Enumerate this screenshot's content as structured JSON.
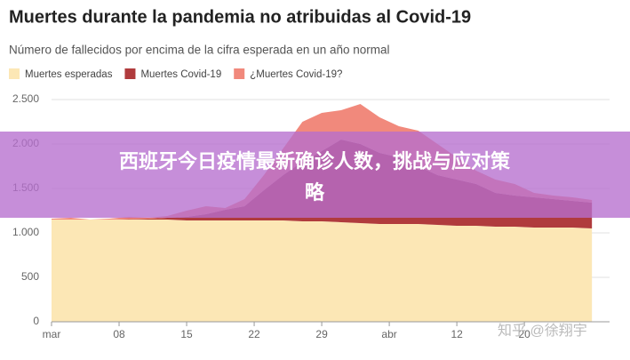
{
  "chart_data": {
    "type": "stacked-area",
    "title": "Muertes durante la pandemia no atribuidas al Covid-19",
    "subtitle": "Número de fallecidos por encima de la cifra esperada en un año normal",
    "x": [
      "03-01",
      "03-03",
      "03-05",
      "03-07",
      "03-09",
      "03-11",
      "03-13",
      "03-15",
      "03-17",
      "03-19",
      "03-21",
      "03-23",
      "03-25",
      "03-27",
      "03-29",
      "03-31",
      "04-02",
      "04-04",
      "04-06",
      "04-08",
      "04-10",
      "04-12",
      "04-14",
      "04-16",
      "04-18",
      "04-20",
      "04-22",
      "04-24",
      "04-26"
    ],
    "series": [
      {
        "name": "Muertes esperadas",
        "color": "#fce7b5",
        "values": [
          1150,
          1150,
          1150,
          1150,
          1150,
          1150,
          1150,
          1140,
          1140,
          1140,
          1140,
          1140,
          1140,
          1130,
          1130,
          1120,
          1110,
          1100,
          1100,
          1100,
          1090,
          1080,
          1080,
          1070,
          1070,
          1060,
          1060,
          1060,
          1050
        ]
      },
      {
        "name": "Muertes Covid-19",
        "color": "#b03b3d",
        "values": [
          0,
          0,
          0,
          0,
          5,
          10,
          20,
          40,
          70,
          120,
          160,
          340,
          510,
          670,
          790,
          930,
          890,
          800,
          750,
          650,
          560,
          520,
          470,
          380,
          350,
          340,
          320,
          300,
          290
        ]
      },
      {
        "name": "¿Muertes Covid-19?",
        "color": "#f1897c",
        "values": [
          10,
          20,
          0,
          10,
          25,
          10,
          20,
          70,
          90,
          20,
          80,
          170,
          300,
          450,
          430,
          330,
          450,
          400,
          350,
          400,
          350,
          250,
          150,
          150,
          130,
          50,
          40,
          40,
          30
        ]
      }
    ],
    "ylim": [
      0,
      2500
    ],
    "yticks": [
      0,
      500,
      {
        "value": 1000,
        "label": "1.000"
      },
      {
        "value": 1500,
        "label": "1.500"
      },
      {
        "value": 2000,
        "label": "2.000"
      },
      {
        "value": 2500,
        "label": "2.500"
      }
    ],
    "xticks": [
      {
        "value": "03-01",
        "label": "mar"
      },
      {
        "value": "03-08",
        "label": "08"
      },
      {
        "value": "03-15",
        "label": "15"
      },
      {
        "value": "03-22",
        "label": "22"
      },
      {
        "value": "03-29",
        "label": "29"
      },
      {
        "value": "04-05",
        "label": "abr"
      },
      {
        "value": "04-12",
        "label": "12"
      },
      {
        "value": "04-19",
        "label": "20"
      }
    ],
    "grid": true
  },
  "banner": [
    "西班牙今日疫情最新确诊人数，挑战与应对策",
    "略"
  ],
  "watermark": "知乎 @徐翔宇"
}
